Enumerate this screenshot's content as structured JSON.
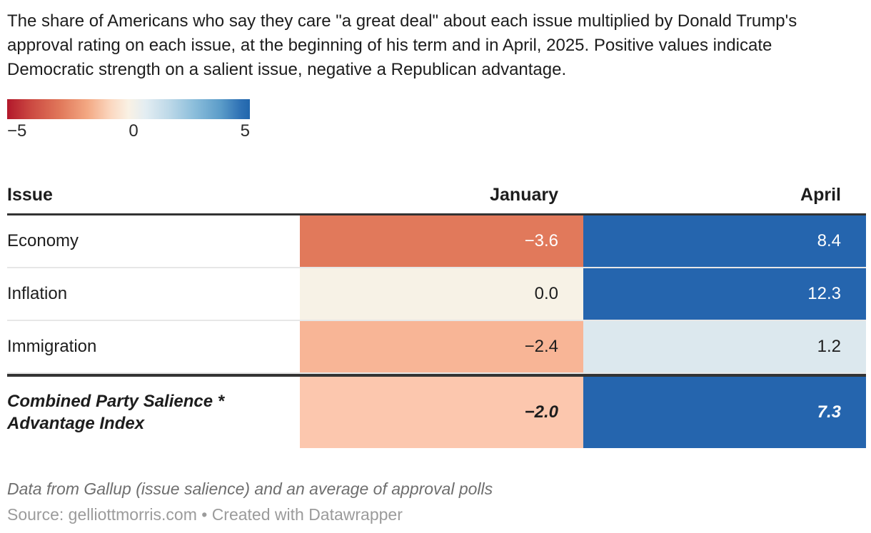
{
  "title": "The share of Americans who say they care \"a great deal\" about each issue multiplied by Donald Trump's approval rating on each issue, at the beginning of his term and in April, 2025. Positive values indicate Democratic strength on a salient issue, negative a Republican advantage.",
  "legend": {
    "min_label": "−5",
    "mid_label": "0",
    "max_label": "5",
    "domain": [
      -5,
      5
    ],
    "gradient_colors": [
      "#b2182b",
      "#e1795b",
      "#f9f1e4",
      "#8cbedb",
      "#2166ac"
    ]
  },
  "chart_data": {
    "type": "heatmap",
    "title": "The share of Americans who say they care \"a great deal\" about each issue multiplied by Donald Trump's approval rating on each issue, at the beginning of his term and in April, 2025. Positive values indicate Democratic strength on a salient issue, negative a Republican advantage.",
    "columns": [
      "January",
      "April"
    ],
    "rows": [
      "Economy",
      "Inflation",
      "Immigration",
      "Combined Party Salience * Advantage Index"
    ],
    "values": [
      [
        -3.6,
        8.4
      ],
      [
        0.0,
        12.3
      ],
      [
        -2.4,
        1.2
      ],
      [
        -2.0,
        7.3
      ]
    ],
    "color_scale": {
      "type": "diverging",
      "domain": [
        -5,
        5
      ],
      "negative_color": "#b2182b",
      "midpoint_color": "#f9f1e4",
      "positive_color": "#2166ac"
    },
    "legend_ticks": [
      "−5",
      "0",
      "5"
    ],
    "footnote": "Data from Gallup (issue salience) and an average of approval polls",
    "source": "Source: gelliottmorris.com • Created with Datawrapper"
  },
  "table": {
    "headers": {
      "issue": "Issue",
      "january": "January",
      "april": "April"
    },
    "rows": [
      {
        "label": "Economy",
        "january": "−3.6",
        "january_bg": "#e1795b",
        "january_fg": "#ffffff",
        "april": "8.4",
        "april_bg": "#2565ae",
        "april_fg": "#ffffff"
      },
      {
        "label": "Inflation",
        "january": "0.0",
        "january_bg": "#f7f2e6",
        "january_fg": "#1d1d1d",
        "april": "12.3",
        "april_bg": "#2565ae",
        "april_fg": "#ffffff"
      },
      {
        "label": "Immigration",
        "january": "−2.4",
        "january_bg": "#f8b596",
        "january_fg": "#1d1d1d",
        "april": "1.2",
        "april_bg": "#dce8ee",
        "april_fg": "#1d1d1d"
      },
      {
        "label": "Combined Party Salience * Advantage Index",
        "january": "−2.0",
        "january_bg": "#fcc7ae",
        "january_fg": "#1d1d1d",
        "april": "7.3",
        "april_bg": "#2565ae",
        "april_fg": "#ffffff"
      }
    ]
  },
  "footer": {
    "footnote": "Data from Gallup (issue salience) and an average of approval polls",
    "source": "Source: gelliottmorris.com • Created with Datawrapper"
  }
}
